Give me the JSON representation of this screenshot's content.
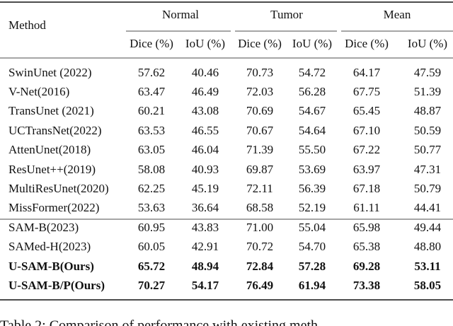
{
  "table": {
    "method_header": "Method",
    "groups": [
      "Normal",
      "Tumor",
      "Mean"
    ],
    "subheaders": [
      "Dice (%)",
      "IoU (%)",
      "Dice (%)",
      "IoU (%)",
      "Dice (%)",
      "IoU (%)"
    ],
    "rows": [
      {
        "cells": [
          "SwinUnet (2022)",
          "57.62",
          "40.46",
          "70.73",
          "54.72",
          "64.17",
          "47.59"
        ]
      },
      {
        "cells": [
          "V-Net(2016)",
          "63.47",
          "46.49",
          "72.03",
          "56.28",
          "67.75",
          "51.39"
        ]
      },
      {
        "cells": [
          "TransUnet (2021)",
          "60.21",
          "43.08",
          "70.69",
          "54.67",
          "65.45",
          "48.87"
        ]
      },
      {
        "cells": [
          "UCTransNet(2022)",
          "63.53",
          "46.55",
          "70.67",
          "54.64",
          "67.10",
          "50.59"
        ]
      },
      {
        "cells": [
          "AttenUnet(2018)",
          "63.05",
          "46.04",
          "71.39",
          "55.50",
          "67.22",
          "50.77"
        ]
      },
      {
        "cells": [
          "ResUnet++(2019)",
          "58.08",
          "40.93",
          "69.87",
          "53.69",
          "63.97",
          "47.31"
        ]
      },
      {
        "cells": [
          "MultiResUnet(2020)",
          "62.25",
          "45.19",
          "72.11",
          "56.39",
          "67.18",
          "50.79"
        ]
      },
      {
        "cells": [
          "MissFormer(2022)",
          "53.63",
          "36.64",
          "68.58",
          "52.19",
          "61.11",
          "44.41"
        ]
      },
      {
        "cells": [
          "SAM-B(2023)",
          "60.95",
          "43.83",
          "71.00",
          "55.04",
          "65.98",
          "49.44"
        ]
      },
      {
        "cells": [
          "SAMed-H(2023)",
          "60.05",
          "42.91",
          "70.72",
          "54.70",
          "65.38",
          "48.80"
        ]
      },
      {
        "cells": [
          "U-SAM-B(Ours)",
          "65.72",
          "48.94",
          "72.84",
          "57.28",
          "69.28",
          "53.11"
        ],
        "bold": true
      },
      {
        "cells": [
          "U-SAM-B/P(Ours)",
          "70.27",
          "54.17",
          "76.49",
          "61.94",
          "73.38",
          "58.05"
        ],
        "bold": true
      }
    ]
  },
  "caption": "Table 2: Comparison of performance with existing meth"
}
